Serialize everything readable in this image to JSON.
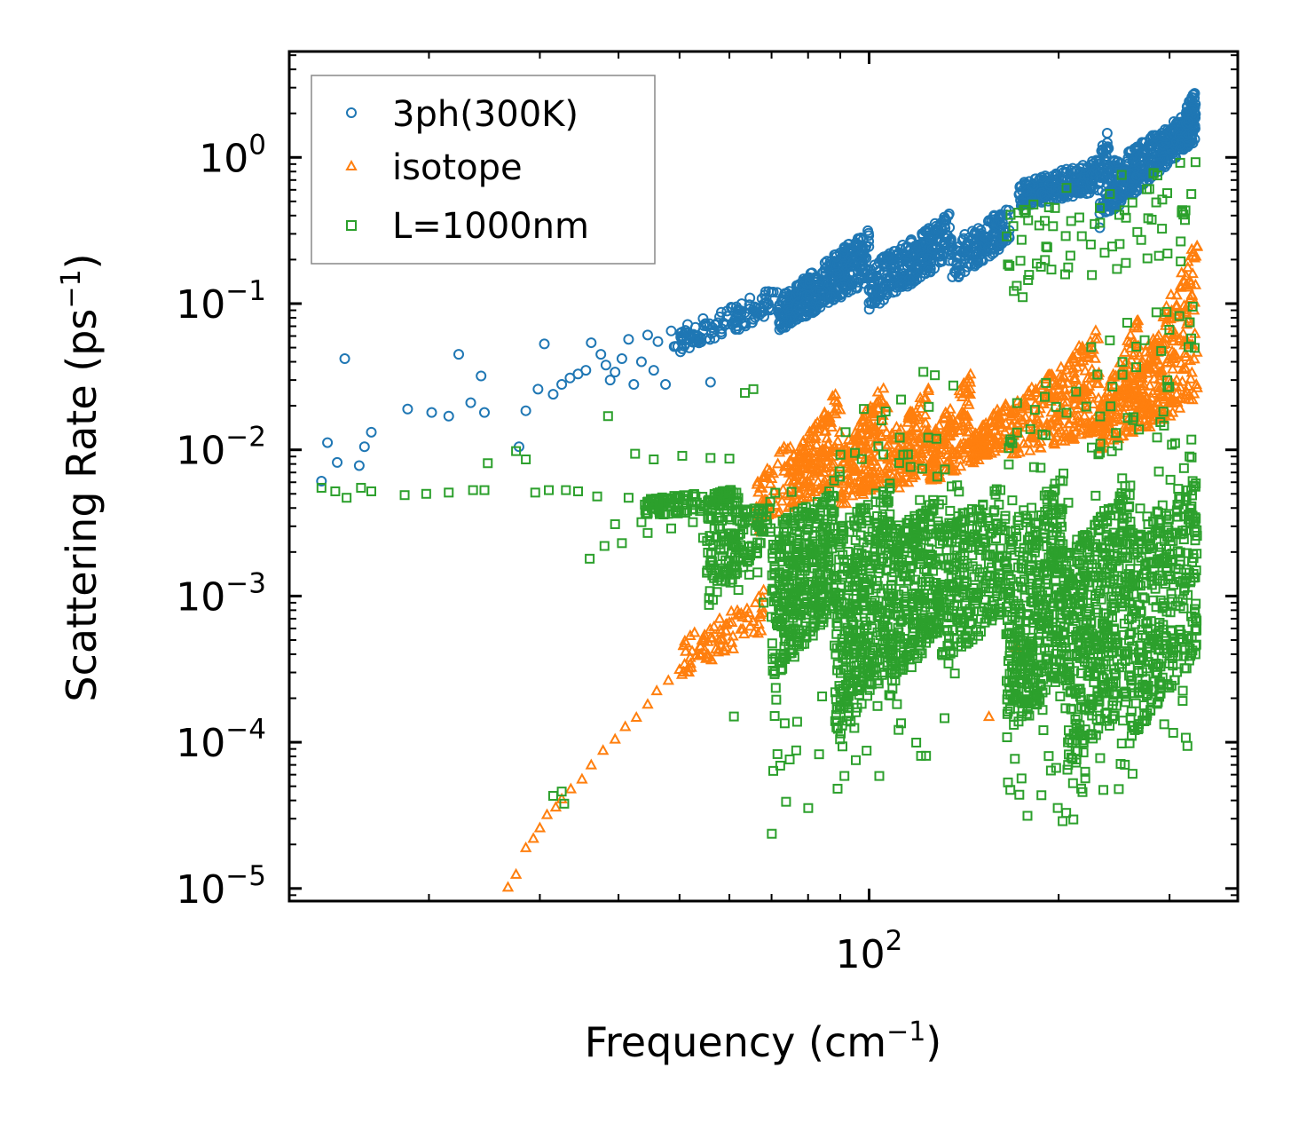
{
  "chart_data": {
    "type": "scatter",
    "xscale": "log",
    "yscale": "log",
    "xlabel": "Frequency (cm",
    "xlabel_sup": "−1",
    "xlabel_tail": ")",
    "ylabel": "Scattering Rate (ps",
    "ylabel_sup": "−1",
    "ylabel_tail": ")",
    "xlim": [
      12,
      385
    ],
    "ylim": [
      8.2e-06,
      5.3
    ],
    "xticks": [
      {
        "value": 100,
        "base": "10",
        "exp": "2"
      }
    ],
    "yticks": [
      {
        "value": 1e-05,
        "base": "10",
        "exp": "−5"
      },
      {
        "value": 0.0001,
        "base": "10",
        "exp": "−4"
      },
      {
        "value": 0.001,
        "base": "10",
        "exp": "−3"
      },
      {
        "value": 0.01,
        "base": "10",
        "exp": "−2"
      },
      {
        "value": 0.1,
        "base": "10",
        "exp": "−1"
      },
      {
        "value": 1,
        "base": "10",
        "exp": "0"
      }
    ],
    "legend_position": "top-left",
    "series": [
      {
        "name": "3ph(300K)",
        "marker": "circle",
        "color": "#1f77b4",
        "points": [
          [
            13.5,
            0.0061
          ],
          [
            13.8,
            0.0112
          ],
          [
            14.3,
            0.0082
          ],
          [
            14.7,
            0.042
          ],
          [
            15.5,
            0.0078
          ],
          [
            15.8,
            0.0105
          ],
          [
            16.2,
            0.0132
          ],
          [
            18.5,
            0.019
          ],
          [
            20.2,
            0.018
          ],
          [
            21.5,
            0.017
          ],
          [
            22.3,
            0.045
          ],
          [
            23.3,
            0.021
          ],
          [
            24.2,
            0.032
          ],
          [
            24.5,
            0.018
          ],
          [
            27.8,
            0.0105
          ],
          [
            28.5,
            0.0185
          ],
          [
            29.8,
            0.026
          ],
          [
            30.5,
            0.053
          ],
          [
            31.5,
            0.024
          ],
          [
            32.5,
            0.028
          ],
          [
            33.5,
            0.031
          ],
          [
            34.5,
            0.033
          ],
          [
            35.5,
            0.035
          ],
          [
            36.2,
            0.054
          ],
          [
            37.5,
            0.045
          ],
          [
            38.2,
            0.038
          ],
          [
            38.8,
            0.03
          ],
          [
            39.5,
            0.034
          ],
          [
            40.5,
            0.042
          ],
          [
            41.5,
            0.057
          ],
          [
            42.3,
            0.028
          ],
          [
            43.5,
            0.04
          ],
          [
            44.5,
            0.061
          ],
          [
            45.5,
            0.035
          ],
          [
            46.2,
            0.055
          ],
          [
            47.5,
            0.028
          ],
          [
            48.5,
            0.065
          ],
          [
            50.5,
            0.049
          ],
          [
            51.5,
            0.072
          ],
          [
            52.5,
            0.058
          ],
          [
            53.5,
            0.06
          ],
          [
            54.5,
            0.079
          ],
          [
            56.0,
            0.029
          ],
          [
            57.5,
            0.074
          ],
          [
            59.5,
            0.082
          ]
        ],
        "bands": [
          {
            "x": [
              49,
              72
            ],
            "y": [
              [
                0.045,
                0.085
              ],
              [
                0.06,
                0.14
              ]
            ],
            "n": 120
          },
          {
            "x": [
              72,
              100
            ],
            "y": [
              [
                0.065,
                0.14
              ],
              [
                0.11,
                0.33
              ]
            ],
            "n": 380
          },
          {
            "x": [
              100,
              135
            ],
            "y": [
              [
                0.09,
                0.2
              ],
              [
                0.18,
                0.42
              ]
            ],
            "n": 300
          },
          {
            "x": [
              135,
              167
            ],
            "y": [
              [
                0.14,
                0.26
              ],
              [
                0.26,
                0.48
              ]
            ],
            "n": 160
          },
          {
            "x": [
              173,
              232
            ],
            "y": [
              [
                0.45,
                0.58
              ],
              [
                0.66,
                0.98
              ]
            ],
            "n": 260
          },
          {
            "x": [
              232,
              240
            ],
            "y": [
              [
                0.3,
                0.45
              ],
              [
                1.1,
                1.8
              ]
            ],
            "n": 50
          },
          {
            "x": [
              240,
              330
            ],
            "y": [
              [
                0.4,
                1.3
              ],
              [
                0.9,
                2.2
              ]
            ],
            "n": 380
          },
          {
            "x": [
              318,
              330
            ],
            "y": [
              [
                1.6,
                1.9
              ],
              [
                2.2,
                2.9
              ]
            ],
            "n": 40
          }
        ]
      },
      {
        "name": "isotope",
        "marker": "triangle",
        "color": "#ff7f0e",
        "points": [
          [
            26.7,
            1.02e-05
          ],
          [
            27.5,
            1.25e-05
          ],
          [
            28.5,
            1.9e-05
          ],
          [
            29.3,
            2.2e-05
          ],
          [
            30.0,
            2.6e-05
          ],
          [
            30.8,
            3.2e-05
          ],
          [
            31.8,
            3.6e-05
          ],
          [
            32.5,
            4.1e-05
          ],
          [
            33.6,
            4.8e-05
          ],
          [
            35.0,
            5.6e-05
          ],
          [
            36.2,
            7e-05
          ],
          [
            37.8,
            8.8e-05
          ],
          [
            39.5,
            0.000105
          ],
          [
            41.0,
            0.000128
          ],
          [
            42.7,
            0.000148
          ],
          [
            44.5,
            0.000182
          ],
          [
            46.0,
            0.000225
          ],
          [
            48.0,
            0.000265
          ],
          [
            50.0,
            0.000315
          ],
          [
            52.0,
            0.00038
          ],
          [
            54.0,
            0.00045
          ],
          [
            56.0,
            0.00052
          ],
          [
            58.0,
            0.00059
          ],
          [
            60.0,
            0.00066
          ],
          [
            62.0,
            0.00074
          ],
          [
            64.0,
            0.00082
          ],
          [
            66.0,
            0.0009
          ],
          [
            68.0,
            0.0011
          ],
          [
            155.0,
            0.00015
          ],
          [
            171.0,
            0.00045
          ]
        ],
        "bands": [
          {
            "x": [
              50,
              68
            ],
            "y": [
              [
                0.00028,
                0.00055
              ],
              [
                0.0005,
                0.00105
              ]
            ],
            "n": 80
          },
          {
            "x": [
              66,
              75
            ],
            "y": [
              [
                0.0025,
                0.004
              ],
              [
                0.006,
                0.013
              ]
            ],
            "n": 60
          },
          {
            "x": [
              75,
              90
            ],
            "y": [
              [
                0.004,
                0.006
              ],
              [
                0.009,
                0.028
              ]
            ],
            "n": 170
          },
          {
            "x": [
              90,
              107
            ],
            "y": [
              [
                0.004,
                0.006
              ],
              [
                0.01,
                0.032
              ]
            ],
            "n": 170
          },
          {
            "x": [
              107,
              125
            ],
            "y": [
              [
                0.005,
                0.007
              ],
              [
                0.012,
                0.028
              ]
            ],
            "n": 140
          },
          {
            "x": [
              125,
              145
            ],
            "y": [
              [
                0.006,
                0.008
              ],
              [
                0.012,
                0.035
              ]
            ],
            "n": 140
          },
          {
            "x": [
              145,
              165
            ],
            "y": [
              [
                0.008,
                0.01
              ],
              [
                0.012,
                0.022
              ]
            ],
            "n": 100
          },
          {
            "x": [
              168,
              232
            ],
            "y": [
              [
                0.009,
                0.013
              ],
              [
                0.02,
                0.07
              ]
            ],
            "n": 260
          },
          {
            "x": [
              232,
              270
            ],
            "y": [
              [
                0.01,
                0.014
              ],
              [
                0.02,
                0.09
              ]
            ],
            "n": 170
          },
          {
            "x": [
              270,
              332
            ],
            "y": [
              [
                0.013,
                0.02
              ],
              [
                0.04,
                0.29
              ]
            ],
            "n": 240
          }
        ]
      },
      {
        "name": "L=1000nm",
        "marker": "square",
        "color": "#2ca02c",
        "points": [
          [
            13.5,
            0.0055
          ],
          [
            14.2,
            0.0052
          ],
          [
            14.8,
            0.0047
          ],
          [
            15.6,
            0.0055
          ],
          [
            16.2,
            0.0052
          ],
          [
            18.3,
            0.0049
          ],
          [
            19.8,
            0.005
          ],
          [
            21.5,
            0.0051
          ],
          [
            23.5,
            0.0053
          ],
          [
            24.5,
            0.0053
          ],
          [
            24.8,
            0.0081
          ],
          [
            27.5,
            0.0098
          ],
          [
            28.5,
            0.0086
          ],
          [
            29.5,
            0.0051
          ],
          [
            31.0,
            0.0053
          ],
          [
            33.0,
            0.0053
          ],
          [
            34.5,
            0.0052
          ],
          [
            36.0,
            0.0018
          ],
          [
            37.0,
            0.0048
          ],
          [
            38.0,
            0.0022
          ],
          [
            38.5,
            0.017
          ],
          [
            39.5,
            0.0031
          ],
          [
            40.5,
            0.0023
          ],
          [
            41.5,
            0.0047
          ],
          [
            42.5,
            0.0094
          ],
          [
            43.5,
            0.0032
          ],
          [
            44.5,
            0.0027
          ],
          [
            45.5,
            0.0086
          ],
          [
            47.0,
            0.0046
          ],
          [
            48.5,
            0.0029
          ],
          [
            50.5,
            0.0091
          ],
          [
            52.5,
            0.0032
          ],
          [
            54.5,
            0.0025
          ],
          [
            56.0,
            0.0088
          ],
          [
            58.0,
            0.0029
          ],
          [
            60.0,
            0.0087
          ],
          [
            61.0,
            0.00015
          ],
          [
            62.0,
            0.0011
          ],
          [
            63.5,
            0.0245
          ],
          [
            64.5,
            0.0014
          ],
          [
            65.5,
            0.026
          ],
          [
            66.5,
            0.00145
          ],
          [
            68.0,
            0.0009
          ],
          [
            70.0,
            0.00072
          ],
          [
            72.0,
            0.0012
          ],
          [
            31.5,
            4.3e-05
          ],
          [
            32.5,
            4.6e-05
          ],
          [
            32.8,
            3.8e-05
          ]
        ],
        "bands": [
          {
            "x": [
              44,
              62
            ],
            "y": [
              [
                0.0035,
                0.004
              ],
              [
                0.0046,
                0.0054
              ]
            ],
            "n": 140
          },
          {
            "x": [
              55,
              70
            ],
            "y": [
              [
                0.0008,
                0.0025
              ],
              [
                0.0035,
                0.0045
              ]
            ],
            "n": 150
          },
          {
            "x": [
              70,
              88
            ],
            "y": [
              [
                0.00025,
                0.0008
              ],
              [
                0.003,
                0.0055
              ]
            ],
            "n": 360
          },
          {
            "x": [
              88,
              108
            ],
            "y": [
              [
                0.0001,
                0.0003
              ],
              [
                0.003,
                0.006
              ]
            ],
            "n": 380
          },
          {
            "x": [
              108,
              130
            ],
            "y": [
              [
                0.0002,
                0.0006
              ],
              [
                0.003,
                0.005
              ]
            ],
            "n": 300
          },
          {
            "x": [
              130,
              165
            ],
            "y": [
              [
                0.0003,
                0.0008
              ],
              [
                0.003,
                0.006
              ]
            ],
            "n": 260
          },
          {
            "x": [
              165,
              205
            ],
            "y": [
              [
                0.0001,
                0.0003
              ],
              [
                0.003,
                0.007
              ]
            ],
            "n": 400
          },
          {
            "x": [
              205,
              260
            ],
            "y": [
              [
                6e-05,
                0.0002
              ],
              [
                0.002,
                0.006
              ]
            ],
            "n": 420
          },
          {
            "x": [
              260,
              332
            ],
            "y": [
              [
                0.0001,
                0.0004
              ],
              [
                0.003,
                0.006
              ]
            ],
            "n": 340
          },
          {
            "x": [
              70,
              140
            ],
            "y": [
              [
                2e-05,
                0.0001
              ],
              [
                0.01,
                0.05
              ]
            ],
            "n": 110
          },
          {
            "x": [
              165,
              330
            ],
            "y": [
              [
                1.5e-05,
                0.0001
              ],
              [
                0.02,
                0.2
              ]
            ],
            "n": 200
          },
          {
            "x": [
              165,
              330
            ],
            "y": [
              [
                0.1,
                0.2
              ],
              [
                0.5,
                1.2
              ]
            ],
            "n": 80
          }
        ]
      }
    ]
  }
}
